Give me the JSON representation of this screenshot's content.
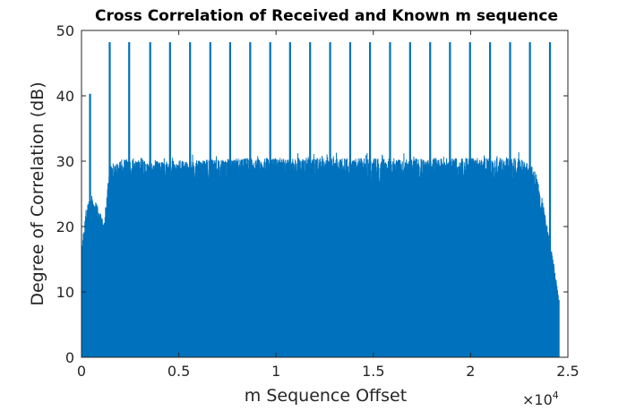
{
  "chart_data": {
    "type": "bar",
    "title": "Cross Correlation of Received and Known m sequence",
    "xlabel": "m Sequence Offset",
    "ylabel": "Degree of Correlation (dB)",
    "xlim": [
      0,
      25000
    ],
    "ylim": [
      0,
      50
    ],
    "x_exponent_label": {
      "base": "×10",
      "exp": "4"
    },
    "xticks": [
      {
        "value": 0,
        "label": "0"
      },
      {
        "value": 5000,
        "label": "0.5"
      },
      {
        "value": 10000,
        "label": "1"
      },
      {
        "value": 15000,
        "label": "1.5"
      },
      {
        "value": 20000,
        "label": "2"
      },
      {
        "value": 25000,
        "label": "2.5"
      }
    ],
    "yticks": [
      {
        "value": 0,
        "label": "0"
      },
      {
        "value": 10,
        "label": "10"
      },
      {
        "value": 20,
        "label": "20"
      },
      {
        "value": 30,
        "label": "30"
      },
      {
        "value": 40,
        "label": "40"
      },
      {
        "value": 50,
        "label": "50"
      }
    ],
    "grid": false,
    "bar_color": "#0072bd",
    "peaks": [
      {
        "x": 440,
        "y": 40.3
      },
      {
        "x": 1450,
        "y": 48.2
      },
      {
        "x": 2450,
        "y": 48.2
      },
      {
        "x": 3530,
        "y": 48.2
      },
      {
        "x": 4550,
        "y": 48.2
      },
      {
        "x": 5580,
        "y": 48.2
      },
      {
        "x": 6620,
        "y": 48.2
      },
      {
        "x": 7640,
        "y": 48.2
      },
      {
        "x": 8670,
        "y": 48.2
      },
      {
        "x": 9700,
        "y": 48.2
      },
      {
        "x": 10720,
        "y": 48.2
      },
      {
        "x": 11750,
        "y": 48.2
      },
      {
        "x": 12780,
        "y": 48.2
      },
      {
        "x": 13810,
        "y": 48.2
      },
      {
        "x": 14830,
        "y": 48.2
      },
      {
        "x": 15860,
        "y": 48.2
      },
      {
        "x": 16890,
        "y": 48.2
      },
      {
        "x": 17920,
        "y": 48.2
      },
      {
        "x": 18940,
        "y": 48.2
      },
      {
        "x": 19970,
        "y": 48.2
      },
      {
        "x": 21000,
        "y": 48.2
      },
      {
        "x": 22030,
        "y": 48.2
      },
      {
        "x": 23050,
        "y": 48.2
      },
      {
        "x": 24080,
        "y": 48.2
      }
    ],
    "noise_envelope": [
      {
        "x": 0,
        "y": 16
      },
      {
        "x": 120,
        "y": 20
      },
      {
        "x": 250,
        "y": 23
      },
      {
        "x": 400,
        "y": 24.5
      },
      {
        "x": 700,
        "y": 24
      },
      {
        "x": 1000,
        "y": 22
      },
      {
        "x": 1150,
        "y": 20.5
      },
      {
        "x": 1300,
        "y": 25
      },
      {
        "x": 1450,
        "y": 29.5
      },
      {
        "x": 2000,
        "y": 30.5
      },
      {
        "x": 4000,
        "y": 30
      },
      {
        "x": 9000,
        "y": 30.5
      },
      {
        "x": 15000,
        "y": 30.5
      },
      {
        "x": 20000,
        "y": 30.5
      },
      {
        "x": 22500,
        "y": 30.5
      },
      {
        "x": 23300,
        "y": 29
      },
      {
        "x": 23700,
        "y": 24
      },
      {
        "x": 24000,
        "y": 19
      },
      {
        "x": 24300,
        "y": 14
      },
      {
        "x": 24550,
        "y": 9
      }
    ]
  }
}
